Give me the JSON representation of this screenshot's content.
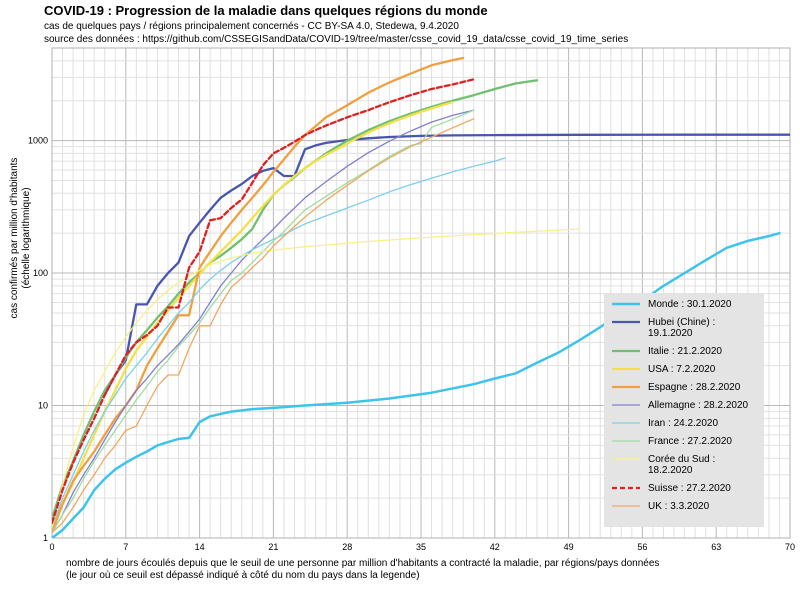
{
  "header": {
    "title": "COVID-19 : Progression de la maladie dans quelques régions du monde",
    "subtitle1": "cas de quelques pays / régions principalement concernés - CC BY-SA 4.0, Stedewa, 9.4.2020",
    "subtitle2": "source des données : https://github.com/CSSEGISandData/COVID-19/tree/master/csse_covid_19_data/csse_covid_19_time_series"
  },
  "chart_data": {
    "type": "line",
    "title": "COVID-19 : Progression de la maladie dans quelques régions du monde",
    "ylabel_line1": "cas confirmés par million d'habitants",
    "ylabel_line2": "(échelle logarithmique)",
    "xlabel_line1": "nombre de jours écoulés depuis que le seuil de une personne par million d'habitants a contracté la maladie, par régions/pays données",
    "xlabel_line2": "(le jour où ce seuil est dépassé indiqué à côté du nom du pays dans la legende)",
    "xlim": [
      0,
      70
    ],
    "ylim": [
      1,
      5000
    ],
    "y_scale": "log",
    "grid": true,
    "x_ticks": [
      "0",
      "7",
      "14",
      "21",
      "28",
      "35",
      "42",
      "49",
      "56",
      "63",
      "70"
    ],
    "y_ticks": [
      {
        "v": 1,
        "label": "1"
      },
      {
        "v": 10,
        "label": "10"
      },
      {
        "v": 100,
        "label": "100"
      },
      {
        "v": 1000,
        "label": "1000"
      }
    ],
    "legend_position": "right",
    "series": [
      {
        "name": "Monde : 30.1.2020",
        "color": "#3ec4ec",
        "width": 2.5,
        "dash": "",
        "x": [
          0,
          1,
          2,
          3,
          4,
          5,
          6,
          7,
          8,
          9,
          10,
          11,
          12,
          13,
          14,
          15,
          17,
          19,
          21,
          24,
          28,
          32,
          36,
          40,
          42,
          44,
          46,
          48,
          50,
          52,
          54,
          56,
          58,
          60,
          62,
          64,
          66,
          68,
          69
        ],
        "y": [
          1,
          1.15,
          1.4,
          1.7,
          2.3,
          2.8,
          3.3,
          3.7,
          4.1,
          4.5,
          5,
          5.3,
          5.6,
          5.7,
          7.5,
          8.3,
          9,
          9.4,
          9.6,
          10,
          10.5,
          11.3,
          12.5,
          14.5,
          16,
          17.5,
          21,
          25,
          31,
          39,
          50,
          62,
          80,
          100,
          125,
          155,
          175,
          190,
          200
        ]
      },
      {
        "name": "Hubei (Chine) : 19.1.2020",
        "color": "#4856b0",
        "width": 2.3,
        "dash": "",
        "x": [
          5,
          6,
          7,
          8,
          9,
          10,
          11,
          12,
          13,
          14,
          15,
          16,
          17,
          18,
          19,
          20,
          21,
          22,
          23,
          24,
          25,
          26,
          28,
          30,
          32,
          35,
          38,
          42,
          50,
          60,
          70
        ],
        "y": [
          12,
          17,
          22,
          58,
          58,
          80,
          100,
          120,
          190,
          240,
          300,
          370,
          420,
          470,
          540,
          590,
          620,
          540,
          540,
          860,
          920,
          960,
          1010,
          1040,
          1065,
          1085,
          1095,
          1100,
          1105,
          1107,
          1108
        ]
      },
      {
        "name": "Italie : 21.2.2020",
        "color": "#70c070",
        "width": 2.3,
        "dash": "",
        "x": [
          0,
          1,
          2,
          3,
          4,
          5,
          6,
          7,
          8,
          9,
          10,
          11,
          12,
          13,
          14,
          15,
          16,
          17,
          18,
          19,
          20,
          21,
          22,
          23,
          24,
          26,
          28,
          30,
          32,
          34,
          36,
          38,
          40,
          42,
          44,
          46
        ],
        "y": [
          1.4,
          2.5,
          3.8,
          6,
          9,
          13,
          17,
          23,
          30,
          37,
          46,
          56,
          70,
          85,
          100,
          120,
          135,
          155,
          180,
          215,
          300,
          390,
          460,
          530,
          620,
          800,
          1000,
          1200,
          1400,
          1600,
          1800,
          2000,
          2200,
          2450,
          2700,
          2850
        ]
      },
      {
        "name": "USA : 7.2.2020",
        "color": "#f4e04a",
        "width": 2.3,
        "dash": "",
        "x": [
          0,
          1,
          2,
          3,
          4,
          5,
          6,
          7,
          8,
          9,
          10,
          11,
          12,
          13,
          14,
          15,
          16,
          17,
          18,
          19,
          20,
          21,
          22,
          23,
          24,
          25,
          26,
          27,
          28,
          29,
          30,
          31,
          32,
          33,
          34,
          35,
          36,
          37,
          38
        ],
        "y": [
          1.2,
          1.8,
          2.6,
          4,
          6,
          9,
          13,
          19,
          26,
          33,
          42,
          52,
          65,
          80,
          98,
          120,
          145,
          175,
          210,
          260,
          320,
          390,
          460,
          540,
          620,
          700,
          780,
          860,
          950,
          1050,
          1150,
          1250,
          1350,
          1450,
          1550,
          1650,
          1750,
          1850,
          1950
        ]
      },
      {
        "name": "Espagne : 28.2.2020",
        "color": "#f0a040",
        "width": 2.3,
        "dash": "",
        "x": [
          0,
          1,
          2,
          3,
          4,
          5,
          6,
          7,
          8,
          9,
          10,
          11,
          12,
          13,
          14,
          15,
          16,
          17,
          18,
          19,
          20,
          21,
          22,
          23,
          24,
          26,
          28,
          30,
          32,
          34,
          36,
          38,
          39
        ],
        "y": [
          1.1,
          1.8,
          2.7,
          3.5,
          4.5,
          6,
          8,
          10,
          13,
          20,
          27,
          36,
          48,
          48,
          110,
          145,
          190,
          240,
          300,
          370,
          460,
          580,
          720,
          900,
          1100,
          1500,
          1850,
          2300,
          2750,
          3200,
          3700,
          4050,
          4200
        ]
      },
      {
        "name": "Allemagne : 28.2.2020",
        "color": "#8080d0",
        "width": 1.3,
        "dash": "",
        "x": [
          0,
          1,
          2,
          3,
          4,
          5,
          6,
          7,
          8,
          9,
          10,
          11,
          12,
          13,
          14,
          15,
          16,
          17,
          18,
          19,
          20,
          21,
          22,
          23,
          24,
          26,
          28,
          30,
          32,
          34,
          36,
          38,
          40
        ],
        "y": [
          1.1,
          1.5,
          2.2,
          3,
          4,
          5.5,
          7.5,
          10,
          13,
          16,
          20,
          24,
          29,
          36,
          45,
          60,
          80,
          100,
          125,
          150,
          180,
          215,
          260,
          310,
          370,
          490,
          640,
          810,
          990,
          1180,
          1380,
          1550,
          1700
        ]
      },
      {
        "name": "Iran : 24.2.2020",
        "color": "#7cd0ec",
        "width": 1.3,
        "dash": "",
        "x": [
          0,
          1,
          2,
          3,
          4,
          5,
          6,
          7,
          8,
          9,
          10,
          11,
          12,
          13,
          14,
          15,
          16,
          17,
          18,
          19,
          20,
          21,
          22,
          23,
          24,
          26,
          28,
          30,
          32,
          34,
          36,
          38,
          40,
          42,
          43
        ],
        "y": [
          1.2,
          2,
          3,
          4.5,
          6.5,
          9,
          12,
          16,
          20,
          25,
          32,
          40,
          50,
          60,
          75,
          90,
          105,
          120,
          135,
          150,
          165,
          180,
          195,
          215,
          235,
          270,
          310,
          355,
          410,
          465,
          520,
          580,
          640,
          700,
          740
        ]
      },
      {
        "name": "France : 27.2.2020",
        "color": "#a0dca0",
        "width": 1.3,
        "dash": "",
        "x": [
          0,
          1,
          2,
          3,
          4,
          5,
          6,
          7,
          8,
          9,
          10,
          11,
          12,
          13,
          14,
          15,
          16,
          17,
          18,
          19,
          20,
          21,
          22,
          23,
          24,
          26,
          28,
          30,
          32,
          34,
          35,
          36,
          38,
          40
        ],
        "y": [
          1.1,
          1.5,
          2,
          2.8,
          3.8,
          5,
          6.5,
          8.5,
          11,
          14,
          18,
          22,
          28,
          34,
          42,
          55,
          70,
          88,
          100,
          120,
          145,
          175,
          205,
          250,
          300,
          380,
          480,
          600,
          760,
          920,
          950,
          1260,
          1450,
          1700
        ]
      },
      {
        "name": "Corée du Sud : 18.2.2020",
        "color": "#f8f088",
        "width": 1.3,
        "dash": "",
        "x": [
          0,
          1,
          2,
          3,
          4,
          5,
          6,
          7,
          8,
          9,
          10,
          11,
          12,
          13,
          14,
          15,
          16,
          17,
          18,
          19,
          20,
          22,
          24,
          26,
          28,
          30,
          33,
          36,
          40,
          44,
          48,
          50
        ],
        "y": [
          1.2,
          2.5,
          4.8,
          8.5,
          13,
          18,
          25,
          33,
          42,
          52,
          63,
          74,
          85,
          95,
          105,
          115,
          123,
          130,
          136,
          141,
          146,
          152,
          158,
          163,
          168,
          173,
          180,
          187,
          195,
          203,
          211,
          215
        ]
      },
      {
        "name": "Suisse : 27.2.2020",
        "color": "#e02020",
        "width": 2.3,
        "dash": "5,3",
        "x": [
          0,
          1,
          2,
          3,
          4,
          5,
          6,
          7,
          8,
          9,
          10,
          11,
          12,
          13,
          14,
          15,
          16,
          17,
          18,
          19,
          20,
          21,
          22,
          23,
          24,
          25,
          26,
          28,
          30,
          32,
          34,
          36,
          38,
          40
        ],
        "y": [
          1.3,
          2.3,
          3.7,
          5.5,
          8,
          12,
          17,
          24,
          30,
          34,
          40,
          55,
          55,
          110,
          145,
          250,
          260,
          310,
          360,
          480,
          650,
          800,
          880,
          980,
          1100,
          1200,
          1300,
          1500,
          1700,
          1950,
          2200,
          2450,
          2650,
          2900
        ]
      },
      {
        "name": "UK : 3.3.2020",
        "color": "#f0a860",
        "width": 1.3,
        "dash": "",
        "x": [
          0,
          1,
          2,
          3,
          4,
          5,
          6,
          7,
          8,
          9,
          10,
          11,
          12,
          13,
          14,
          15,
          16,
          17,
          18,
          19,
          20,
          21,
          22,
          23,
          24,
          26,
          28,
          30,
          32,
          34,
          36,
          38,
          40
        ],
        "y": [
          1.1,
          1.3,
          1.7,
          2.3,
          3,
          4,
          5,
          6.5,
          7,
          10,
          14,
          17,
          17,
          27,
          40,
          40,
          58,
          78,
          92,
          110,
          130,
          160,
          190,
          225,
          265,
          355,
          460,
          590,
          740,
          900,
          1060,
          1250,
          1460
        ]
      }
    ]
  }
}
